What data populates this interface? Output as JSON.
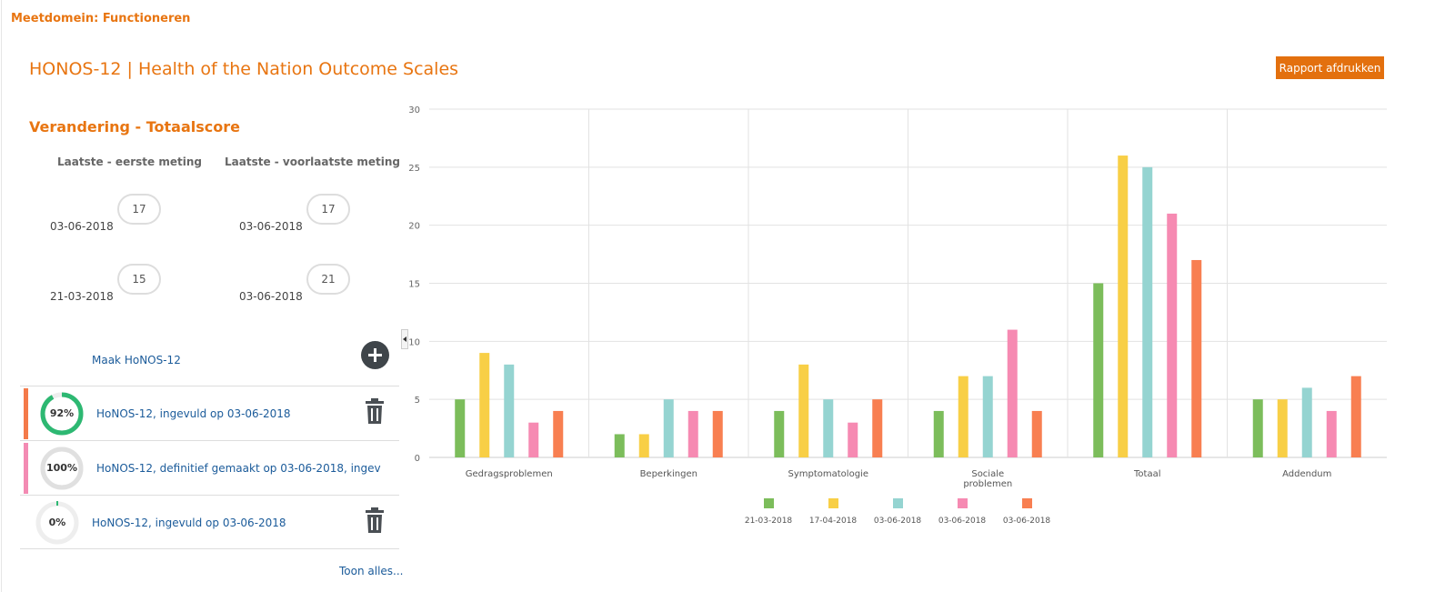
{
  "header": {
    "domain_title": "Meetdomein: Functioneren",
    "page_title": "HONOS-12 | Health of the Nation Outcome Scales",
    "print_button": "Rapport afdrukken"
  },
  "summary": {
    "title": "Verandering - Totaalscore",
    "columns": [
      {
        "heading": "Laatste - eerste meting",
        "rows": [
          {
            "date": "03-06-2018",
            "score": "17"
          },
          {
            "date": "21-03-2018",
            "score": "15"
          }
        ]
      },
      {
        "heading": "Laatste - voorlaatste meting",
        "rows": [
          {
            "date": "03-06-2018",
            "score": "17"
          },
          {
            "date": "03-06-2018",
            "score": "21"
          }
        ]
      }
    ]
  },
  "actions": {
    "make_label": "Maak HoNOS-12",
    "add_icon": "plus-circle-icon",
    "delete_icon": "trash-icon",
    "collapse_icon": "caret-left-icon"
  },
  "measurements": [
    {
      "percent_label": "92%",
      "progress": 0.92,
      "label": "HoNOS-12, ingevuld op 03-06-2018",
      "accent": "#f47a4a",
      "ring_color": "#2db872",
      "deletable": true
    },
    {
      "percent_label": "100%",
      "progress": 1.0,
      "label": "HoNOS-12, definitief gemaakt op 03-06-2018, ingev",
      "accent": "#f38bb3",
      "ring_color": "#e0e0e0",
      "deletable": false
    },
    {
      "percent_label": "0%",
      "progress": 0.0,
      "label": "HoNOS-12, ingevuld op 03-06-2018",
      "accent": "",
      "ring_color": "#2db872",
      "deletable": true
    }
  ],
  "show_all": "Toon alles...",
  "chart_data": {
    "type": "bar",
    "categories": [
      "Gedragsproblemen",
      "Beperkingen",
      "Symptomatologie",
      "Sociale problemen",
      "Totaal",
      "Addendum"
    ],
    "category_lines": [
      [
        "Gedragsproblemen"
      ],
      [
        "Beperkingen"
      ],
      [
        "Symptomatologie"
      ],
      [
        "Sociale",
        "problemen"
      ],
      [
        "Totaal"
      ],
      [
        "Addendum"
      ]
    ],
    "series": [
      {
        "name": "21-03-2018",
        "color": "#7cbd5b",
        "values": [
          5,
          2,
          4,
          4,
          15,
          5
        ]
      },
      {
        "name": "17-04-2018",
        "color": "#f8cf46",
        "values": [
          9,
          2,
          8,
          7,
          26,
          5
        ]
      },
      {
        "name": "03-06-2018",
        "color": "#95d4d1",
        "values": [
          8,
          5,
          5,
          7,
          25,
          6
        ]
      },
      {
        "name": "03-06-2018",
        "color": "#f68ab2",
        "values": [
          3,
          4,
          3,
          11,
          21,
          4
        ]
      },
      {
        "name": "03-06-2018",
        "color": "#f87f51",
        "values": [
          4,
          4,
          5,
          4,
          17,
          7
        ]
      }
    ],
    "y_ticks": [
      0,
      5,
      10,
      15,
      20,
      25,
      30
    ],
    "ylim": [
      0,
      30
    ],
    "grid": true,
    "legend": "bottom"
  }
}
